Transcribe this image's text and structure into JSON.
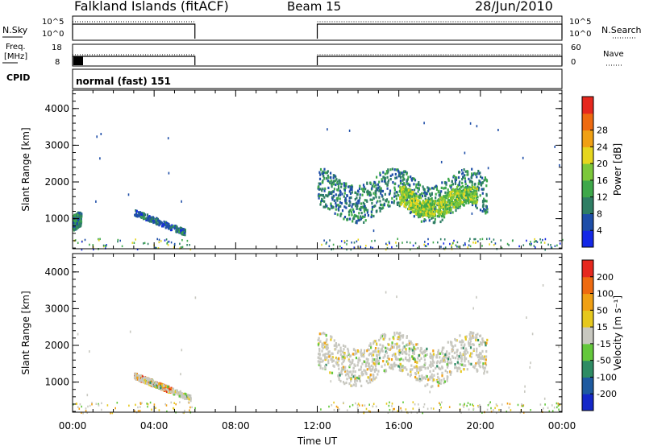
{
  "header": {
    "station": "Falkland Islands (fitACF)",
    "beam": "Beam 15",
    "date": "28/Jun/2010"
  },
  "status_panels": {
    "nsky_label": "N.Sky",
    "nsearch_label": "N.Search",
    "nsky_ticks": [
      "10^5",
      "10^0"
    ],
    "nsearch_ticks": [
      "10^5",
      "10^0"
    ],
    "freq_label_1": "Freq.",
    "freq_label_2": "[MHz]",
    "freq_ticks": [
      "18",
      "8"
    ],
    "nave_label": "Nave",
    "nave_ticks": [
      "60",
      "0"
    ],
    "cpid_label": "CPID",
    "cpid_value": "normal (fast) 151"
  },
  "chart_data": [
    {
      "type": "heatmap",
      "title": "",
      "xlabel": "Time UT",
      "ylabel": "Slant Range [km]",
      "xticks": [
        "00:00",
        "04:00",
        "08:00",
        "12:00",
        "16:00",
        "20:00",
        "00:00"
      ],
      "yticks": [
        "1000",
        "2000",
        "3000",
        "4000"
      ],
      "xlim_hours": [
        0,
        24
      ],
      "ylim_km": [
        180,
        4500
      ],
      "colorbar": {
        "label": "Power [dB]",
        "ticks": [
          "4",
          "8",
          "12",
          "16",
          "20",
          "24",
          "28"
        ],
        "colors": [
          "#1428e6",
          "#1e4ea8",
          "#2e7e64",
          "#3ea84a",
          "#7cc83a",
          "#e6d61e",
          "#f0a014",
          "#ee6a10",
          "#e6281e"
        ]
      },
      "echo_regions": [
        {
          "t_start": 0.0,
          "t_end": 0.4,
          "r_min": 600,
          "r_max": 1200,
          "power_db": 8
        },
        {
          "t_start": 3.0,
          "t_end": 5.5,
          "r_min": 550,
          "r_max": 1200,
          "power_db": 6
        },
        {
          "t_start": 12.0,
          "t_end": 20.3,
          "r_min": 900,
          "r_max": 2400,
          "power_db": 8
        },
        {
          "t_start": 16.0,
          "t_end": 19.8,
          "r_min": 1100,
          "r_max": 1900,
          "power_db": 16
        }
      ]
    },
    {
      "type": "heatmap",
      "title": "",
      "xlabel": "Time UT",
      "ylabel": "Slant Range [km]",
      "xticks": [
        "00:00",
        "04:00",
        "08:00",
        "12:00",
        "16:00",
        "20:00",
        "00:00"
      ],
      "yticks": [
        "1000",
        "2000",
        "3000",
        "4000"
      ],
      "xlim_hours": [
        0,
        24
      ],
      "ylim_km": [
        180,
        4500
      ],
      "colorbar": {
        "label": "Velocity [m s⁻¹]",
        "ticks": [
          "200",
          "100",
          "50",
          "15",
          "-15",
          "-50",
          "-100",
          "-200"
        ],
        "colors": [
          "#1428c8",
          "#1e5aa0",
          "#2e8c64",
          "#64c83c",
          "#c8c8c0",
          "#e6c81e",
          "#f0a014",
          "#ee6a10",
          "#e6281e"
        ]
      },
      "echo_regions": [
        {
          "t_start": 3.0,
          "t_end": 4.8,
          "r_min": 600,
          "r_max": 1300,
          "velocity": -100
        },
        {
          "t_start": 3.0,
          "t_end": 5.8,
          "r_min": 450,
          "r_max": 900,
          "velocity": 0
        },
        {
          "t_start": 12.0,
          "t_end": 20.3,
          "r_min": 900,
          "r_max": 2400,
          "velocity": 0
        }
      ]
    }
  ]
}
